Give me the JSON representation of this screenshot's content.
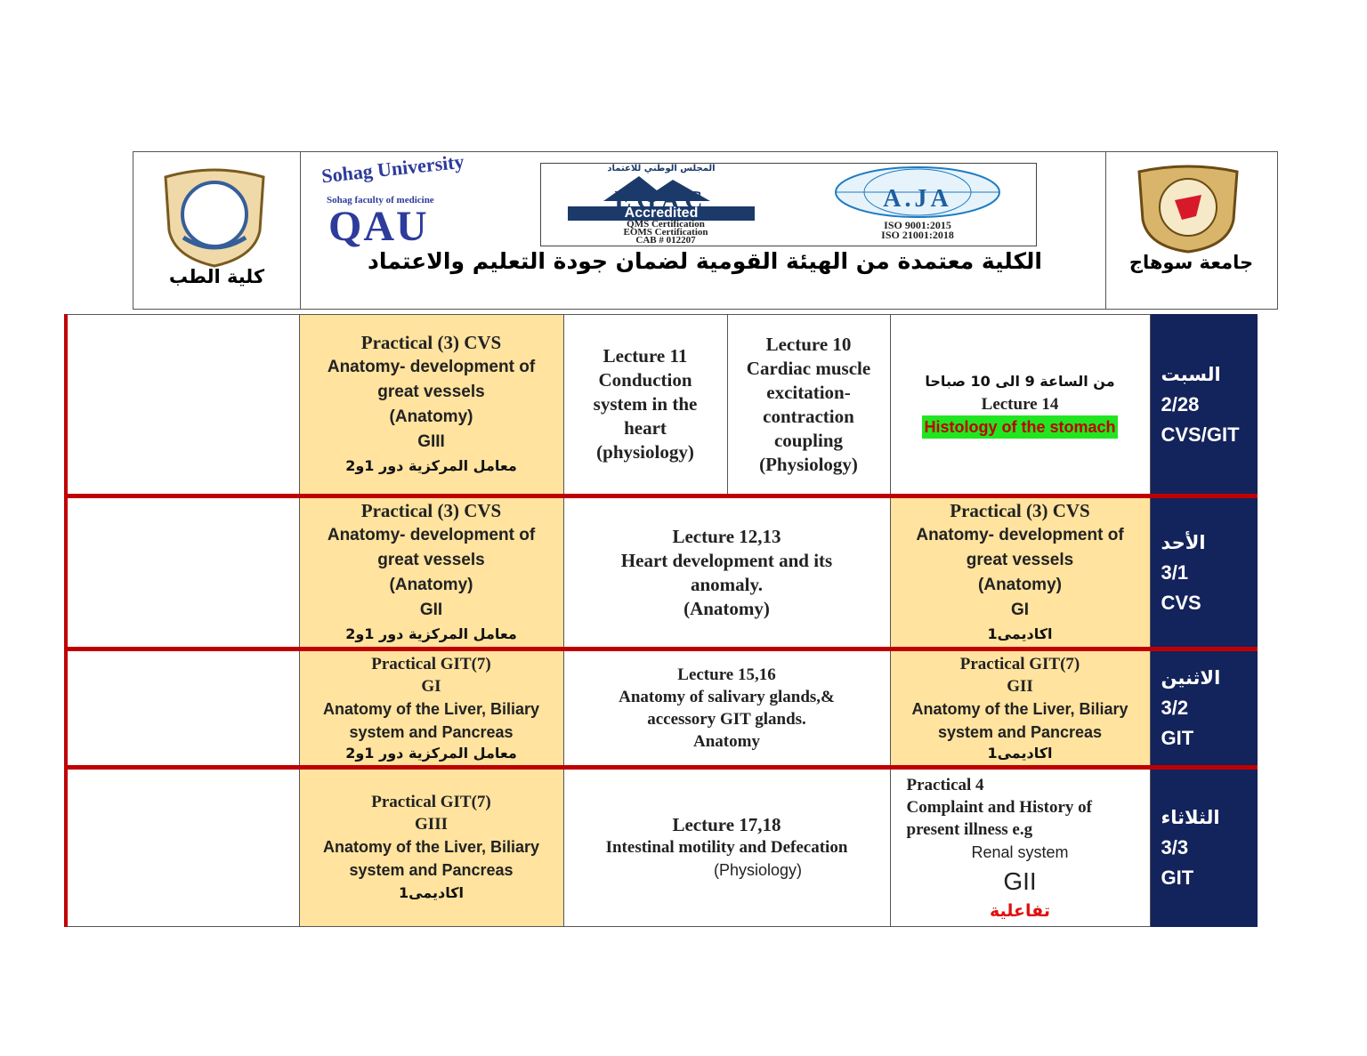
{
  "header": {
    "left_label": "كلية الطب",
    "university": "Sohag University",
    "faculty": "Sohag faculty of medicine",
    "qau": "QAU",
    "egac": {
      "arabic": "المجلس الوطني للاعتماد",
      "name": "EGAC",
      "status": "Accredited",
      "lines": [
        "QMS Certification",
        "EOMS Certification",
        "CAB # 012207"
      ]
    },
    "aja": {
      "name": "A.JA",
      "lines": [
        "ISO 9001:2015",
        "ISO 21001:2018"
      ]
    },
    "title": "الكلية معتمدة من الهيئة القومية لضمان جودة التعليم والاعتماد",
    "right_label": "جامعة سوهاج"
  },
  "schedule": {
    "rows": [
      {
        "day": "السبت",
        "date": "2/28",
        "topic": "CVS/GIT",
        "cells": [
          [
            "Practical (3) CVS",
            "Anatomy- development of",
            "great vessels",
            "(Anatomy)",
            "GIII",
            "معامل المركزية دور 1و2"
          ],
          [
            "Lecture 11",
            "Conduction",
            "system in the",
            "heart",
            "(physiology)"
          ],
          [
            "Lecture 10",
            "Cardiac muscle",
            "excitation-",
            "contraction",
            "coupling",
            "(Physiology)"
          ],
          [
            "من الساعة 9 الى 10 صباحا",
            "Lecture 14",
            "Histology of the stomach"
          ]
        ]
      },
      {
        "day": "الأحد",
        "date": "3/1",
        "topic": "CVS",
        "cells": [
          [
            "Practical (3) CVS",
            "Anatomy- development of",
            "great vessels",
            "(Anatomy)",
            "GII",
            "معامل المركزية دور 1و2"
          ],
          [
            "Lecture 12,13",
            "Heart development and its",
            "anomaly.",
            "(Anatomy)"
          ],
          [
            "Practical (3) CVS",
            "Anatomy- development of",
            "great vessels",
            "(Anatomy)",
            "GI",
            "اكاديمى1"
          ]
        ]
      },
      {
        "day": "الاثنين",
        "date": "3/2",
        "topic": "GIT",
        "cells": [
          [
            "Practical  GIT(7)",
            "GI",
            "Anatomy of the Liver, Biliary",
            "system and Pancreas",
            "معامل المركزية دور 1و2"
          ],
          [
            "Lecture 15,16",
            "Anatomy of salivary glands,&",
            "accessory GIT glands.",
            "Anatomy"
          ],
          [
            "Practical  GIT(7)",
            "GII",
            "Anatomy of the Liver, Biliary",
            "system and Pancreas",
            "اكاديمى1"
          ]
        ]
      },
      {
        "day": "الثلاثاء",
        "date": "3/3",
        "topic": "GIT",
        "cells": [
          [
            "Practical  GIT(7)",
            "GIII",
            "Anatomy of the Liver, Biliary",
            "system and Pancreas",
            "اكاديمى1"
          ],
          [
            "Lecture 17,18",
            "Intestinal motility and Defecation",
            "(Physiology)"
          ],
          [
            "Practical 4",
            "Complaint and History of",
            "present illness e.g",
            "Renal system",
            "GII",
            "تفاعلية"
          ]
        ]
      }
    ]
  }
}
